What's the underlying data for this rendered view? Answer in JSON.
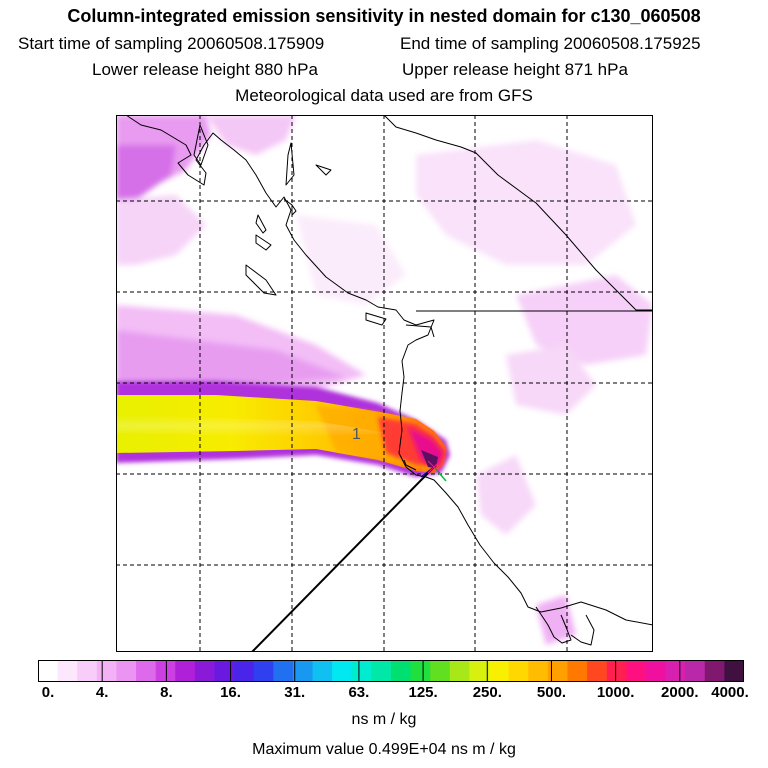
{
  "header": {
    "title": "Column-integrated emission sensitivity in nested domain for c130_060508",
    "start_label": "Start time of sampling",
    "start_value": "20060508.175909",
    "end_label": "End time of sampling",
    "end_value": "20060508.175925",
    "lower_label": "Lower release height",
    "lower_value": "880 hPa",
    "upper_label": "Upper release height",
    "upper_value": "871 hPa",
    "met_line": "Meteorological data used are from GFS"
  },
  "map": {
    "plume_label": "1",
    "gridlines": "dashed 5x5"
  },
  "colorbar": {
    "colors": [
      "#ffffff",
      "#fde7fd",
      "#f9cdf9",
      "#f3b2f5",
      "#ec94f2",
      "#dd6aeb",
      "#cc40e3",
      "#b020d8",
      "#8a1ad8",
      "#6a1ae0",
      "#4a24e8",
      "#3040f0",
      "#2070f0",
      "#1898f0",
      "#10c0f0",
      "#00e8f0",
      "#00ecd0",
      "#00e8a8",
      "#00e070",
      "#20e040",
      "#60e020",
      "#a8e818",
      "#d8f010",
      "#f8f000",
      "#ffd800",
      "#ffbc00",
      "#ffa000",
      "#ff7800",
      "#ff4820",
      "#ff2050",
      "#ff1080",
      "#f010a0",
      "#d820b0",
      "#b828a8",
      "#801870",
      "#401040"
    ],
    "tick_labels": [
      "0.",
      "4.",
      "8.",
      "16.",
      "31.",
      "63.",
      "125.",
      "250.",
      "500.",
      "1000.",
      "2000.",
      "4000."
    ],
    "units": "ns m / kg"
  },
  "footer": {
    "max_label": "Maximum value",
    "max_value": "0.499E+04",
    "max_units": "ns m / kg"
  }
}
